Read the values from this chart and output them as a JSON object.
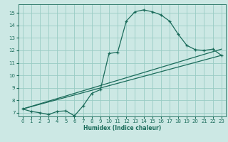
{
  "xlabel": "Humidex (Indice chaleur)",
  "bg_color": "#cce8e4",
  "grid_color": "#99ccc4",
  "line_color": "#1a6b5a",
  "xlim": [
    -0.5,
    23.5
  ],
  "ylim": [
    6.7,
    15.7
  ],
  "xticks": [
    0,
    1,
    2,
    3,
    4,
    5,
    6,
    7,
    8,
    9,
    10,
    11,
    12,
    13,
    14,
    15,
    16,
    17,
    18,
    19,
    20,
    21,
    22,
    23
  ],
  "yticks": [
    7,
    8,
    9,
    10,
    11,
    12,
    13,
    14,
    15
  ],
  "line1_x": [
    0,
    1,
    2,
    3,
    4,
    5,
    6,
    7,
    8,
    9,
    10,
    11,
    12,
    13,
    14,
    15,
    16,
    17,
    18,
    19,
    20,
    21,
    22,
    23
  ],
  "line1_y": [
    7.3,
    7.1,
    7.0,
    6.85,
    7.1,
    7.15,
    6.75,
    7.55,
    8.55,
    8.85,
    11.75,
    11.85,
    14.35,
    15.1,
    15.25,
    15.1,
    14.85,
    14.35,
    13.3,
    12.4,
    12.05,
    12.0,
    12.1,
    11.6
  ],
  "line2_x": [
    0,
    23
  ],
  "line2_y": [
    7.3,
    11.6
  ],
  "line3_x": [
    0,
    23
  ],
  "line3_y": [
    7.3,
    12.1
  ]
}
